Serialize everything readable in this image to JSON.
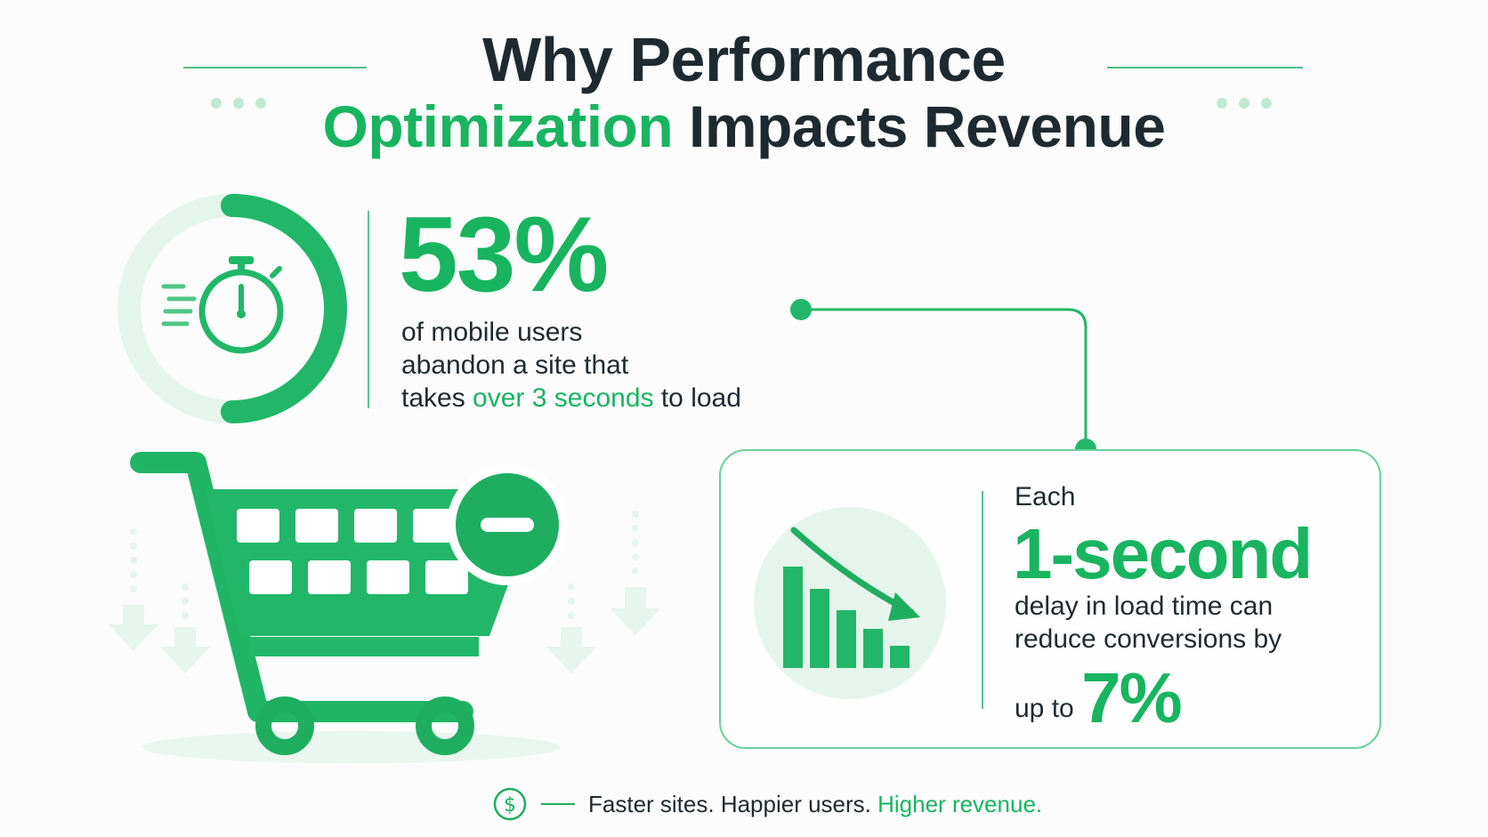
{
  "title": {
    "line1": "Why Performance",
    "line2_highlight": "Optimization",
    "line2_rest": " Impacts Revenue"
  },
  "stat1": {
    "value": "53%",
    "line1": "of mobile users",
    "line2": "abandon a site that",
    "line3_pre": "takes ",
    "line3_highlight": "over 3 seconds",
    "line3_post": " to load"
  },
  "stat2": {
    "intro": "Each",
    "value": "1-second",
    "line1": "delay in load time can",
    "line2": "reduce conversions by",
    "line3_pre": "up to ",
    "line3_value": "7%"
  },
  "footer": {
    "text": "Faster sites. Happier users. ",
    "highlight": "Higher revenue."
  },
  "colors": {
    "accent": "#19b45f",
    "accent_light": "#dff3e8",
    "text": "#1f2a30"
  },
  "icons": [
    "stopwatch-icon",
    "shopping-cart-icon",
    "minus-badge-icon",
    "declining-bar-chart-icon",
    "dollar-icon"
  ]
}
